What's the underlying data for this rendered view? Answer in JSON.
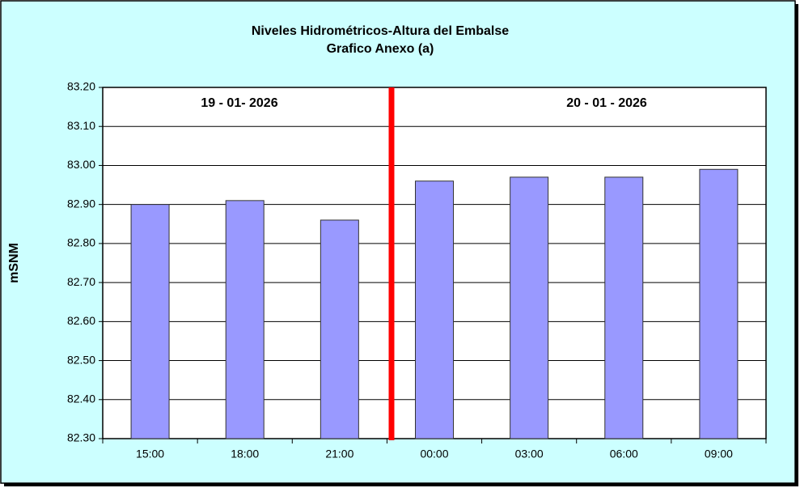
{
  "chart_data": {
    "type": "bar",
    "title": "Niveles Hidrométricos-Altura del Embalse",
    "subtitle": "Grafico Anexo (a)",
    "y_label": "mSNM",
    "annotations": [
      "19 - 01- 2026",
      "20 - 01 - 2026"
    ],
    "categories": [
      "15:00",
      "18:00",
      "21:00",
      "00:00",
      "03:00",
      "06:00",
      "09:00"
    ],
    "values": [
      82.9,
      82.91,
      82.86,
      82.96,
      82.97,
      82.97,
      82.99
    ],
    "color": "#9999ff",
    "ylim": [
      82.3,
      83.2
    ],
    "yticks": [
      {
        "value": 82.3,
        "label": "82.30"
      },
      {
        "value": 82.4,
        "label": "82.40"
      },
      {
        "value": 82.5,
        "label": "82.50"
      },
      {
        "value": 82.6,
        "label": "82.60"
      },
      {
        "value": 82.7,
        "label": "82.70"
      },
      {
        "value": 82.8,
        "label": "82.80"
      },
      {
        "value": 82.9,
        "label": "82.90"
      },
      {
        "value": 83.0,
        "label": "83.00"
      },
      {
        "value": 83.1,
        "label": "83.10"
      },
      {
        "value": 83.2,
        "label": "83.20"
      }
    ],
    "grid": true
  }
}
